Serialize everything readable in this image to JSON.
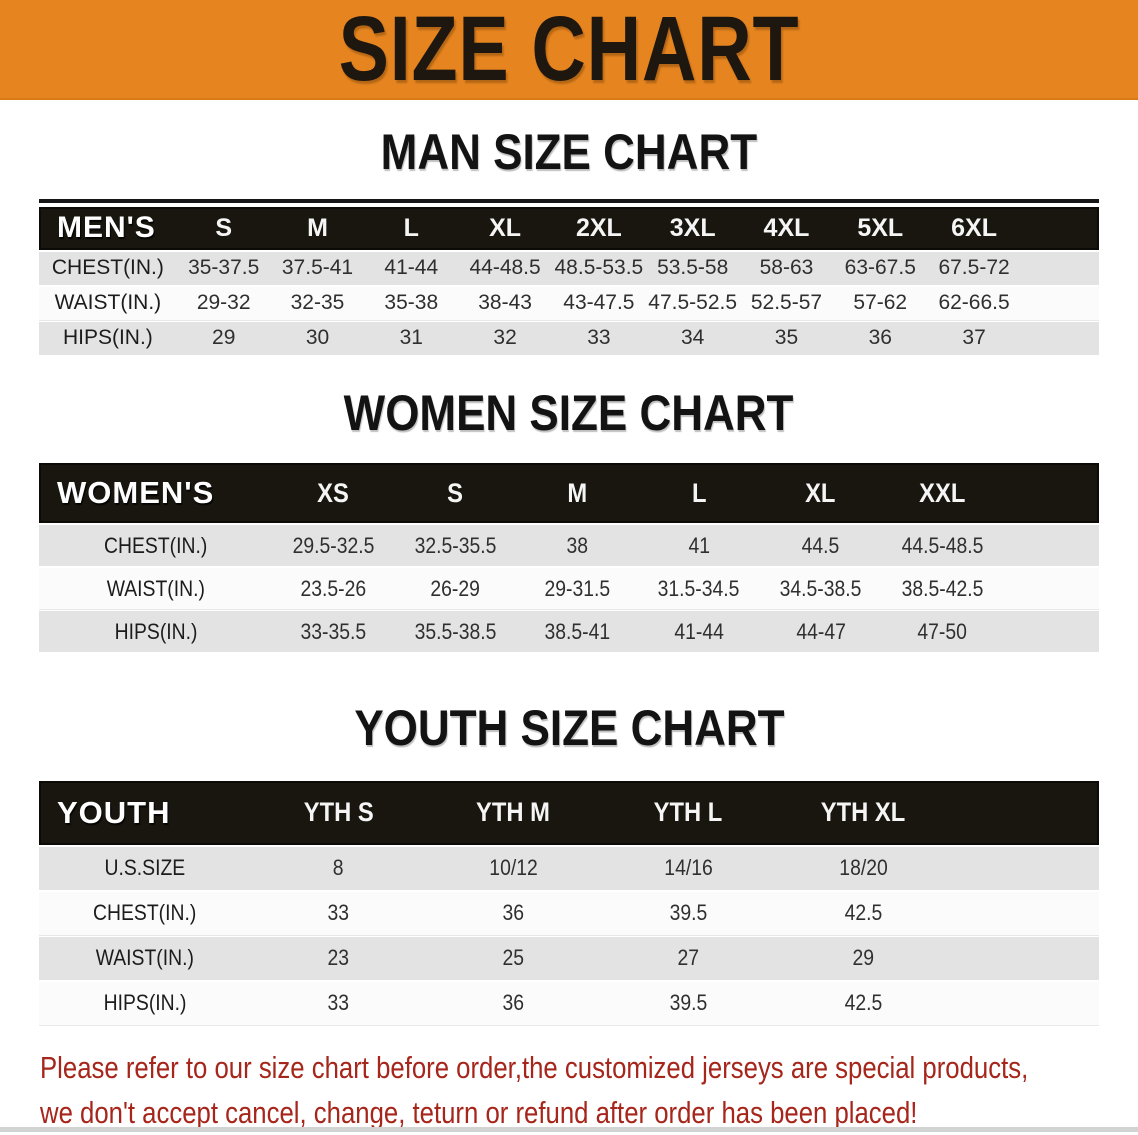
{
  "banner": {
    "title": "SIZE CHART"
  },
  "colors": {
    "banner_orange": "#e68520",
    "header_black": "#19160f",
    "row_gray": "#e3e3e3",
    "row_white": "#fbfbfb",
    "disclaimer_red": "#a6261b"
  },
  "tables": [
    {
      "id": "men",
      "heading": "MAN SIZE CHART",
      "corner_label": "MEN'S",
      "sizes": [
        "S",
        "M",
        "L",
        "XL",
        "2XL",
        "3XL",
        "4XL",
        "5XL",
        "6XL"
      ],
      "rows": [
        {
          "label": "CHEST(IN.)",
          "values": [
            "35-37.5",
            "37.5-41",
            "41-44",
            "44-48.5",
            "48.5-53.5",
            "53.5-58",
            "58-63",
            "63-67.5",
            "67.5-72"
          ]
        },
        {
          "label": "WAIST(IN.)",
          "values": [
            "29-32",
            "32-35",
            "35-38",
            "38-43",
            "43-47.5",
            "47.5-52.5",
            "52.5-57",
            "57-62",
            "62-66.5"
          ]
        },
        {
          "label": "HIPS(IN.)",
          "values": [
            "29",
            "30",
            "31",
            "32",
            "33",
            "34",
            "35",
            "36",
            "37"
          ]
        }
      ]
    },
    {
      "id": "women",
      "heading": "WOMEN SIZE CHART",
      "corner_label": "WOMEN'S",
      "sizes": [
        "XS",
        "S",
        "M",
        "L",
        "XL",
        "XXL"
      ],
      "rows": [
        {
          "label": "CHEST(IN.)",
          "values": [
            "29.5-32.5",
            "32.5-35.5",
            "38",
            "41",
            "44.5",
            "44.5-48.5"
          ]
        },
        {
          "label": "WAIST(IN.)",
          "values": [
            "23.5-26",
            "26-29",
            "29-31.5",
            "31.5-34.5",
            "34.5-38.5",
            "38.5-42.5"
          ]
        },
        {
          "label": "HIPS(IN.)",
          "values": [
            "33-35.5",
            "35.5-38.5",
            "38.5-41",
            "41-44",
            "44-47",
            "47-50"
          ]
        }
      ]
    },
    {
      "id": "youth",
      "heading": "YOUTH SIZE CHART",
      "corner_label": "YOUTH",
      "sizes": [
        "YTH S",
        "YTH M",
        "YTH L",
        "YTH XL"
      ],
      "rows": [
        {
          "label": "U.S.SIZE",
          "values": [
            "8",
            "10/12",
            "14/16",
            "18/20"
          ]
        },
        {
          "label": "CHEST(IN.)",
          "values": [
            "33",
            "36",
            "39.5",
            "42.5"
          ]
        },
        {
          "label": "WAIST(IN.)",
          "values": [
            "23",
            "25",
            "27",
            "29"
          ]
        },
        {
          "label": "HIPS(IN.)",
          "values": [
            "33",
            "36",
            "39.5",
            "42.5"
          ]
        }
      ]
    }
  ],
  "disclaimer": {
    "line1": "Please refer to our size chart before order,the customized jerseys are special products,",
    "line2": "we don't accept cancel, change, teturn or refund after order has been placed!"
  }
}
